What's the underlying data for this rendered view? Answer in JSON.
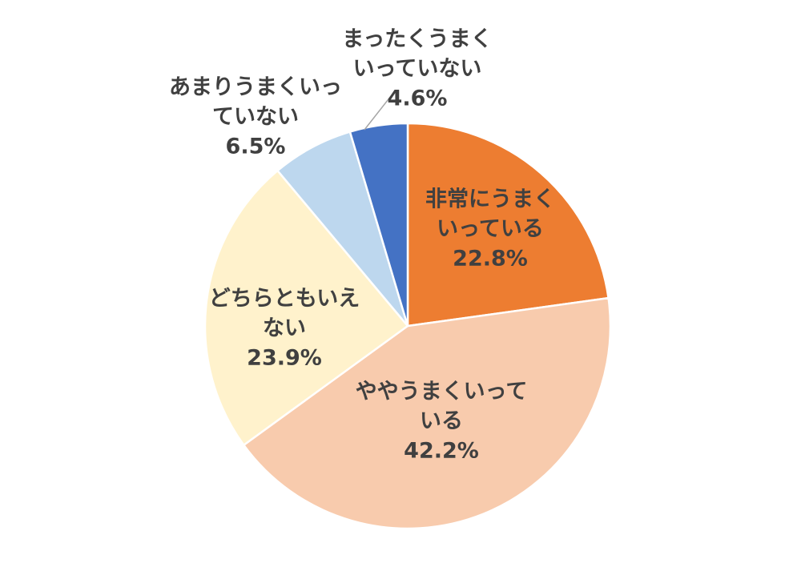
{
  "chart_data": {
    "type": "pie",
    "title": "",
    "start_angle_deg": 0,
    "direction": "clockwise",
    "slices": [
      {
        "label_lines": [
          "非常にうまく",
          "いっている"
        ],
        "value": 22.8,
        "value_text": "22.8%",
        "color": "#ED7D31"
      },
      {
        "label_lines": [
          "ややうまくいって",
          "いる"
        ],
        "value": 42.2,
        "value_text": "42.2%",
        "color": "#F8CBAD"
      },
      {
        "label_lines": [
          "どちらともいえ",
          "ない"
        ],
        "value": 23.9,
        "value_text": "23.9%",
        "color": "#FFF2CC"
      },
      {
        "label_lines": [
          "あまりうまくいっ",
          "ていない"
        ],
        "value": 6.5,
        "value_text": "6.5%",
        "color": "#BDD7EE"
      },
      {
        "label_lines": [
          "まったくうまく",
          "いっていない"
        ],
        "value": 4.6,
        "value_text": "4.6%",
        "color": "#4472C4"
      }
    ],
    "slice_border_color": "#FFFFFF",
    "text_color": "#404040",
    "leader_line_color": "#A6A6A6"
  }
}
